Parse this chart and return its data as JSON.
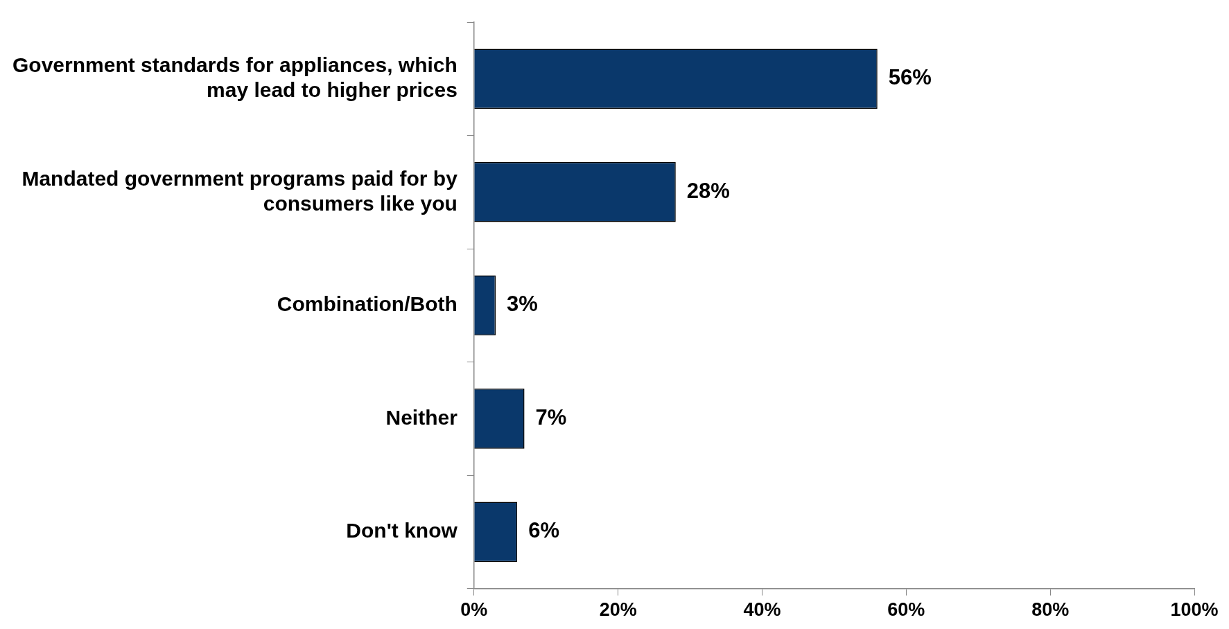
{
  "chart_data": {
    "type": "bar",
    "orientation": "horizontal",
    "categories": [
      "Government standards for appliances, which may lead to higher prices",
      "Mandated government programs paid for by consumers like you",
      "Combination/Both",
      "Neither",
      "Don't know"
    ],
    "values": [
      56,
      28,
      3,
      7,
      6
    ],
    "value_labels": [
      "56%",
      "28%",
      "3%",
      "7%",
      "6%"
    ],
    "color": "#0a386b",
    "xlim": [
      0,
      100
    ],
    "xticks": [
      {
        "value": 0,
        "label": "0%"
      },
      {
        "value": 20,
        "label": "20%"
      },
      {
        "value": 40,
        "label": "40%"
      },
      {
        "value": 60,
        "label": "60%"
      },
      {
        "value": 80,
        "label": "80%"
      },
      {
        "value": 100,
        "label": "100%"
      }
    ],
    "legend": false
  }
}
